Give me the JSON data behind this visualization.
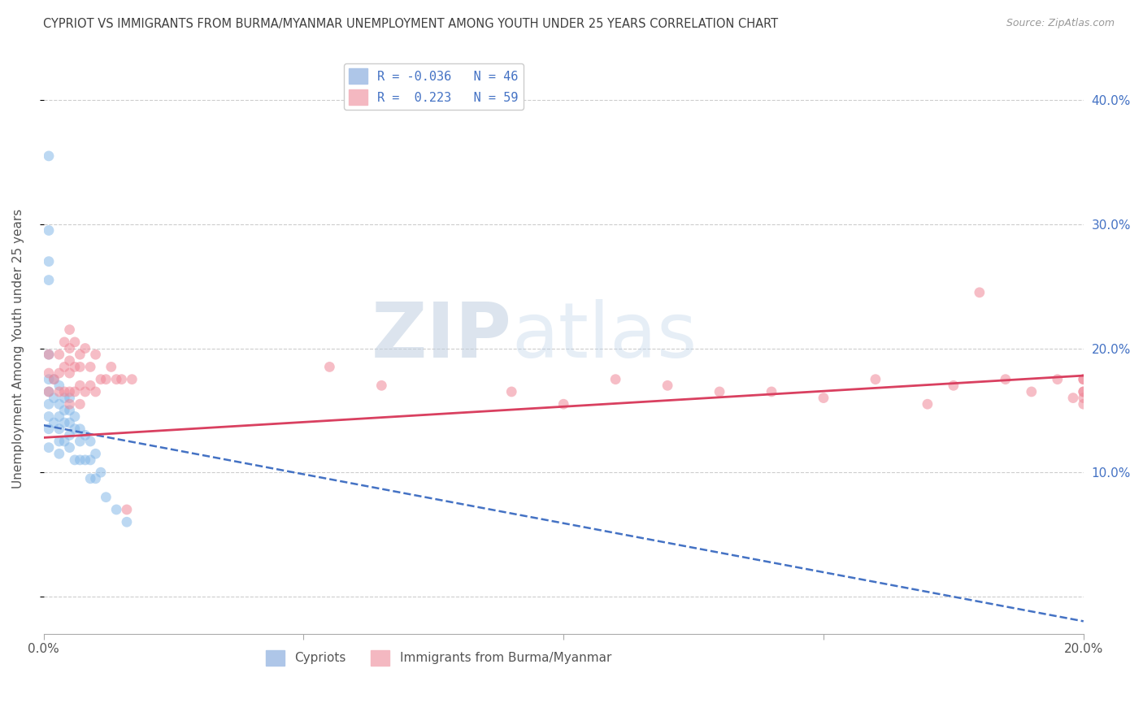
{
  "title": "CYPRIOT VS IMMIGRANTS FROM BURMA/MYANMAR UNEMPLOYMENT AMONG YOUTH UNDER 25 YEARS CORRELATION CHART",
  "source": "Source: ZipAtlas.com",
  "ylabel": "Unemployment Among Youth under 25 years",
  "xlim": [
    0.0,
    0.2
  ],
  "ylim": [
    -0.03,
    0.43
  ],
  "yticks": [
    0.0,
    0.1,
    0.2,
    0.3,
    0.4
  ],
  "ytick_labels": [
    "",
    "10.0%",
    "20.0%",
    "30.0%",
    "40.0%"
  ],
  "xticks": [
    0.0,
    0.05,
    0.1,
    0.15,
    0.2
  ],
  "xtick_labels": [
    "0.0%",
    "",
    "",
    "",
    "20.0%"
  ],
  "legend_r1": "R = -0.036   N = 46",
  "legend_r2": "R =  0.223   N = 59",
  "legend_label_cypriots": "Cypriots",
  "legend_label_immigrants": "Immigrants from Burma/Myanmar",
  "watermark_zip": "ZIP",
  "watermark_atlas": "atlas",
  "blue_scatter_x": [
    0.001,
    0.001,
    0.001,
    0.001,
    0.001,
    0.001,
    0.001,
    0.001,
    0.001,
    0.001,
    0.001,
    0.002,
    0.002,
    0.002,
    0.003,
    0.003,
    0.003,
    0.003,
    0.003,
    0.003,
    0.004,
    0.004,
    0.004,
    0.004,
    0.005,
    0.005,
    0.005,
    0.005,
    0.005,
    0.006,
    0.006,
    0.006,
    0.007,
    0.007,
    0.007,
    0.008,
    0.008,
    0.009,
    0.009,
    0.009,
    0.01,
    0.01,
    0.011,
    0.012,
    0.014,
    0.016
  ],
  "blue_scatter_y": [
    0.355,
    0.295,
    0.27,
    0.255,
    0.195,
    0.175,
    0.165,
    0.155,
    0.145,
    0.135,
    0.12,
    0.175,
    0.16,
    0.14,
    0.17,
    0.155,
    0.145,
    0.135,
    0.125,
    0.115,
    0.16,
    0.15,
    0.14,
    0.125,
    0.16,
    0.15,
    0.14,
    0.13,
    0.12,
    0.145,
    0.135,
    0.11,
    0.135,
    0.125,
    0.11,
    0.13,
    0.11,
    0.125,
    0.11,
    0.095,
    0.115,
    0.095,
    0.1,
    0.08,
    0.07,
    0.06
  ],
  "pink_scatter_x": [
    0.001,
    0.001,
    0.001,
    0.002,
    0.003,
    0.003,
    0.003,
    0.004,
    0.004,
    0.004,
    0.005,
    0.005,
    0.005,
    0.005,
    0.005,
    0.005,
    0.006,
    0.006,
    0.006,
    0.007,
    0.007,
    0.007,
    0.007,
    0.008,
    0.008,
    0.009,
    0.009,
    0.01,
    0.01,
    0.011,
    0.012,
    0.013,
    0.014,
    0.015,
    0.016,
    0.017,
    0.055,
    0.065,
    0.09,
    0.1,
    0.11,
    0.12,
    0.13,
    0.14,
    0.15,
    0.16,
    0.17,
    0.175,
    0.18,
    0.185,
    0.19,
    0.195,
    0.198,
    0.2,
    0.2,
    0.2,
    0.2,
    0.2,
    0.2
  ],
  "pink_scatter_y": [
    0.195,
    0.18,
    0.165,
    0.175,
    0.195,
    0.18,
    0.165,
    0.205,
    0.185,
    0.165,
    0.215,
    0.2,
    0.19,
    0.18,
    0.165,
    0.155,
    0.205,
    0.185,
    0.165,
    0.195,
    0.185,
    0.17,
    0.155,
    0.2,
    0.165,
    0.185,
    0.17,
    0.195,
    0.165,
    0.175,
    0.175,
    0.185,
    0.175,
    0.175,
    0.07,
    0.175,
    0.185,
    0.17,
    0.165,
    0.155,
    0.175,
    0.17,
    0.165,
    0.165,
    0.16,
    0.175,
    0.155,
    0.17,
    0.245,
    0.175,
    0.165,
    0.175,
    0.16,
    0.165,
    0.175,
    0.16,
    0.165,
    0.175,
    0.155
  ],
  "blue_line_x": [
    0.0,
    0.2
  ],
  "blue_line_y": [
    0.138,
    -0.02
  ],
  "pink_line_x": [
    0.0,
    0.2
  ],
  "pink_line_y": [
    0.128,
    0.178
  ],
  "scatter_size": 85,
  "scatter_alpha": 0.55,
  "blue_scatter_color": "#85b8e8",
  "pink_scatter_color": "#f08898",
  "blue_line_color": "#4472c4",
  "pink_line_color": "#d94060",
  "grid_color": "#c8c8c8",
  "background_color": "#ffffff",
  "title_color": "#404040",
  "axis_label_color": "#555555",
  "tick_color": "#555555",
  "right_tick_color": "#4472c4",
  "legend_patch_blue": "#aec6e8",
  "legend_patch_pink": "#f4b8c1"
}
